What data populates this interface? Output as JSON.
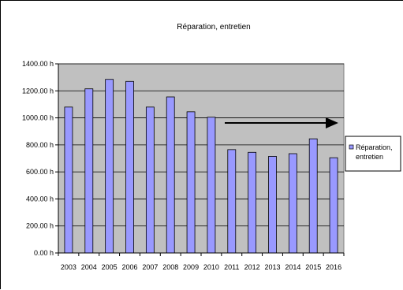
{
  "chart_data": {
    "type": "bar",
    "title": "Réparation, entretien",
    "xlabel": "",
    "ylabel": "",
    "categories": [
      "2003",
      "2004",
      "2005",
      "2006",
      "2007",
      "2008",
      "2009",
      "2010",
      "2011",
      "2012",
      "2013",
      "2014",
      "2015",
      "2016"
    ],
    "series": [
      {
        "name": "Réparation, entretien",
        "values": [
          1080,
          1215,
          1285,
          1270,
          1080,
          1155,
          1045,
          1005,
          765,
          745,
          715,
          735,
          845,
          705
        ]
      }
    ],
    "ylim": [
      0,
      1400
    ],
    "y_ticks": [
      "0.00 h",
      "200.00 h",
      "400.00 h",
      "600.00 h",
      "800.00 h",
      "1000.00 h",
      "1200.00 h",
      "1400.00 h"
    ],
    "grid": true,
    "legend_position": "right",
    "annotation": "arrow pointing right from 2010 to 2016",
    "colors": {
      "bar_fill": "#9999ff",
      "bar_stroke": "#000000",
      "plot_bg": "#c0c0c0",
      "gridline": "#000000"
    }
  }
}
